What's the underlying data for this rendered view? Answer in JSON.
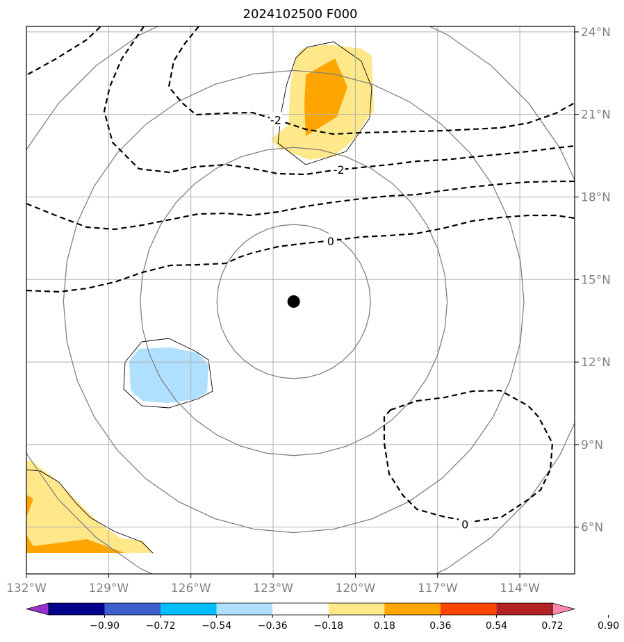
{
  "title": "2024102500 F000",
  "map": {
    "lon_range": [
      -132,
      -112
    ],
    "lat_range": [
      4.3,
      24.2
    ],
    "lon_ticks": [
      {
        "value": -132,
        "label": "132°W"
      },
      {
        "value": -129,
        "label": "129°W"
      },
      {
        "value": -126,
        "label": "126°W"
      },
      {
        "value": -123,
        "label": "123°W"
      },
      {
        "value": -120,
        "label": "120°W"
      },
      {
        "value": -117,
        "label": "117°W"
      },
      {
        "value": -114,
        "label": "114°W"
      }
    ],
    "lat_ticks": [
      {
        "value": 24,
        "label": "24°N"
      },
      {
        "value": 21,
        "label": "21°N"
      },
      {
        "value": 18,
        "label": "18°N"
      },
      {
        "value": 15,
        "label": "15°N"
      },
      {
        "value": 12,
        "label": "12°N"
      },
      {
        "value": 9,
        "label": "9°N"
      },
      {
        "value": 6,
        "label": "6°N"
      }
    ],
    "grid": true,
    "storm_center": {
      "lon": -122.25,
      "lat": 14.2
    },
    "range_rings_deg": [
      2.8,
      5.6,
      8.4,
      11.2
    ],
    "ring_color": "#808080",
    "contour_labels": [
      {
        "text": "-2",
        "lon": -122.9,
        "lat": 20.8
      },
      {
        "text": "-2",
        "lon": -120.6,
        "lat": 19.0
      },
      {
        "text": "0",
        "lon": -120.9,
        "lat": 16.4
      },
      {
        "text": "0",
        "lon": -116.0,
        "lat": 6.1
      }
    ]
  },
  "colorbar": {
    "colors": [
      "#9932cc",
      "#00008b",
      "#3a5fcd",
      "#00bfff",
      "#b0e0ff",
      "#ffffff",
      "#ffe88a",
      "#ffa500",
      "#ff4500",
      "#b22222",
      "#ff88aa"
    ],
    "ticks": [
      "−0.90",
      "−0.72",
      "−0.54",
      "−0.36",
      "−0.18",
      "0.18",
      "0.36",
      "0.54",
      "0.72",
      "0.90"
    ]
  }
}
